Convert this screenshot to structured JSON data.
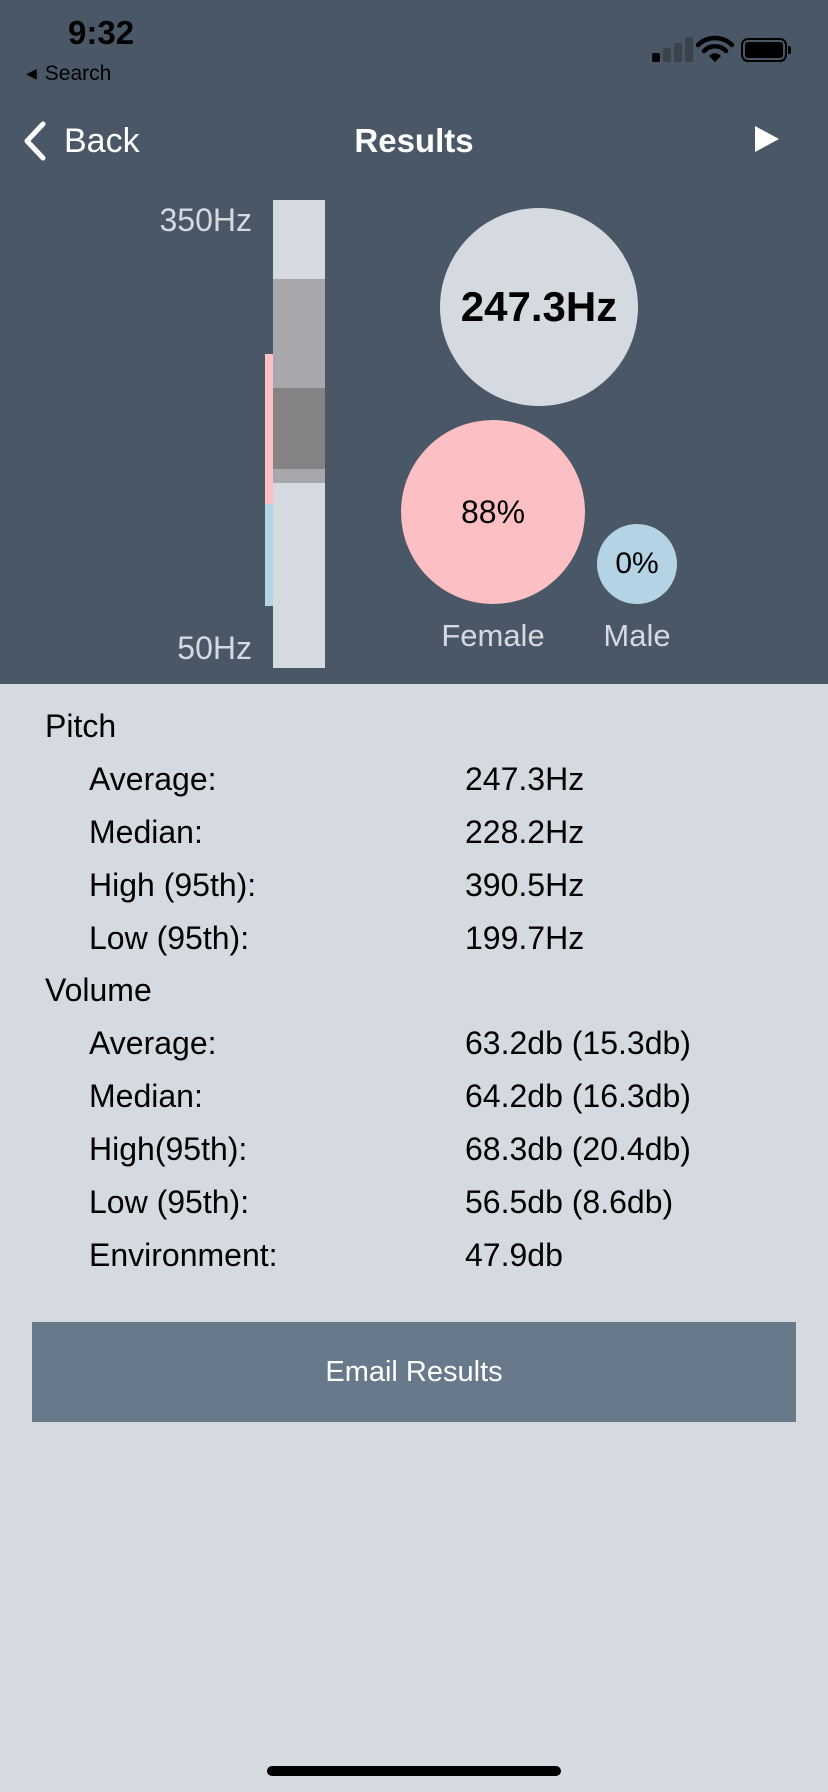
{
  "status_bar": {
    "time": "9:32",
    "back_app": "Search"
  },
  "nav": {
    "back_label": "Back",
    "title": "Results"
  },
  "colors": {
    "header_bg": "#495766",
    "body_bg": "#d5dae1",
    "female": "#fcbfc4",
    "male": "#b4d3e5",
    "button_bg": "#67798b"
  },
  "range": {
    "high_label": "350Hz",
    "low_label": "50Hz",
    "min_hz": 50,
    "max_hz": 350,
    "pitch_low_hz": 199.7,
    "pitch_high_hz": 390.5,
    "iqr_low_hz": 213,
    "iqr_high_hz": 288,
    "female_range_hz": [
      165,
      320
    ],
    "male_range_hz": [
      85,
      180
    ]
  },
  "summary": {
    "average": "247.3Hz",
    "female_percent": "88%",
    "female_label": "Female",
    "male_percent": "0%",
    "male_label": "Male"
  },
  "pitch": {
    "title": "Pitch",
    "rows": [
      {
        "label": "Average:",
        "value": "247.3Hz"
      },
      {
        "label": "Median:",
        "value": "228.2Hz"
      },
      {
        "label": "High (95th):",
        "value": "390.5Hz"
      },
      {
        "label": "Low (95th):",
        "value": "199.7Hz"
      }
    ]
  },
  "volume": {
    "title": "Volume",
    "rows": [
      {
        "label": "Average:",
        "value": "63.2db (15.3db)"
      },
      {
        "label": "Median:",
        "value": "64.2db (16.3db)"
      },
      {
        "label": "High(95th):",
        "value": "68.3db (20.4db)"
      },
      {
        "label": "Low (95th):",
        "value": "56.5db (8.6db)"
      },
      {
        "label": "Environment:",
        "value": "47.9db"
      }
    ]
  },
  "email_button": "Email Results"
}
